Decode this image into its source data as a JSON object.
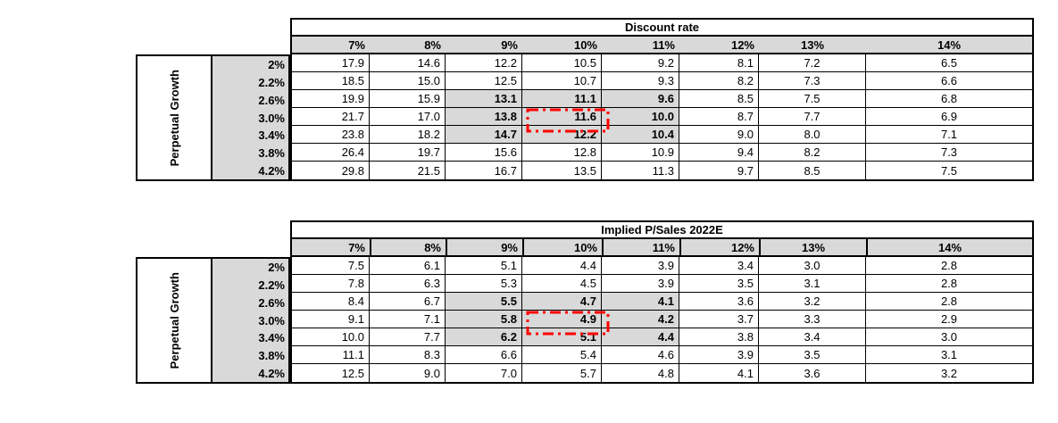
{
  "page": {
    "background": "#ffffff"
  },
  "colors": {
    "grid_border": "#000000",
    "header_fill": "#d9d9d9",
    "row_label_fill": "#d9d9d9",
    "highlight_fill": "#d9d9d9",
    "red_box": "#ff0000",
    "text": "#000000"
  },
  "tables": [
    {
      "title": "Discount rate",
      "row_axis_label": "Perpetual Growth",
      "col_headers": [
        "7%",
        "8%",
        "9%",
        "10%",
        "11%",
        "12%",
        "13%",
        "14%"
      ],
      "row_headers": [
        "2%",
        "2.2%",
        "2.6%",
        "3.0%",
        "3.4%",
        "3.8%",
        "4.2%"
      ],
      "rows": [
        [
          "17.9",
          "14.6",
          "12.2",
          "10.5",
          "9.2",
          "8.1",
          "7.2",
          "6.5"
        ],
        [
          "18.5",
          "15.0",
          "12.5",
          "10.7",
          "9.3",
          "8.2",
          "7.3",
          "6.6"
        ],
        [
          "19.9",
          "15.9",
          "13.1",
          "11.1",
          "9.6",
          "8.5",
          "7.5",
          "6.8"
        ],
        [
          "21.7",
          "17.0",
          "13.8",
          "11.6",
          "10.0",
          "8.7",
          "7.7",
          "6.9"
        ],
        [
          "23.8",
          "18.2",
          "14.7",
          "12.2",
          "10.4",
          "9.0",
          "8.0",
          "7.1"
        ],
        [
          "26.4",
          "19.7",
          "15.6",
          "12.8",
          "10.9",
          "9.4",
          "8.2",
          "7.3"
        ],
        [
          "29.8",
          "21.5",
          "16.7",
          "13.5",
          "11.3",
          "9.7",
          "8.5",
          "7.5"
        ]
      ],
      "highlight": {
        "rows": [
          "2.6%",
          "3.0%",
          "3.4%"
        ],
        "cols": [
          "9%",
          "10%",
          "11%"
        ],
        "row_start": 2,
        "row_end": 4,
        "col_start": 2,
        "col_end": 4
      },
      "red_box_cell": {
        "row_header": "3.0%",
        "col_header": "10%",
        "value": "11.6"
      }
    },
    {
      "title": "Implied P/Sales 2022E",
      "row_axis_label": "Perpetual Growth",
      "col_headers": [
        "7%",
        "8%",
        "9%",
        "10%",
        "11%",
        "12%",
        "13%",
        "14%"
      ],
      "row_headers": [
        "2%",
        "2.2%",
        "2.6%",
        "3.0%",
        "3.4%",
        "3.8%",
        "4.2%"
      ],
      "rows": [
        [
          "7.5",
          "6.1",
          "5.1",
          "4.4",
          "3.9",
          "3.4",
          "3.0",
          "2.8"
        ],
        [
          "7.8",
          "6.3",
          "5.3",
          "4.5",
          "3.9",
          "3.5",
          "3.1",
          "2.8"
        ],
        [
          "8.4",
          "6.7",
          "5.5",
          "4.7",
          "4.1",
          "3.6",
          "3.2",
          "2.8"
        ],
        [
          "9.1",
          "7.1",
          "5.8",
          "4.9",
          "4.2",
          "3.7",
          "3.3",
          "2.9"
        ],
        [
          "10.0",
          "7.7",
          "6.2",
          "5.1",
          "4.4",
          "3.8",
          "3.4",
          "3.0"
        ],
        [
          "11.1",
          "8.3",
          "6.6",
          "5.4",
          "4.6",
          "3.9",
          "3.5",
          "3.1"
        ],
        [
          "12.5",
          "9.0",
          "7.0",
          "5.7",
          "4.8",
          "4.1",
          "3.6",
          "3.2"
        ]
      ],
      "highlight": {
        "rows": [
          "2.6%",
          "3.0%",
          "3.4%"
        ],
        "cols": [
          "9%",
          "10%",
          "11%"
        ],
        "row_start": 2,
        "row_end": 4,
        "col_start": 2,
        "col_end": 4
      },
      "red_box_cell": {
        "row_header": "3.0%",
        "col_header": "10%",
        "value": "4.9"
      }
    }
  ]
}
